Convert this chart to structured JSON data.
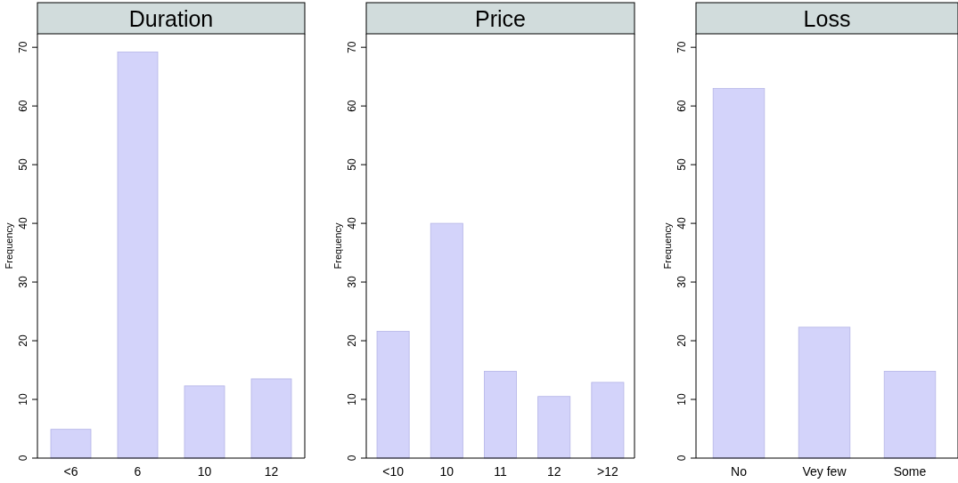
{
  "chart_data": [
    {
      "type": "bar",
      "title": "Duration",
      "ylabel": "Frequency",
      "categories": [
        "<6",
        "6",
        "10",
        "12"
      ],
      "values": [
        4.9,
        69.2,
        12.3,
        13.5
      ],
      "color": "#d3d3fa",
      "ylim": [
        0,
        72.3
      ],
      "yticks": [
        0,
        10,
        20,
        30,
        40,
        50,
        60,
        70
      ],
      "grid": false
    },
    {
      "type": "bar",
      "title": "Price",
      "ylabel": "Frequency",
      "categories": [
        "<10",
        "10",
        "11",
        "12",
        ">12"
      ],
      "values": [
        21.6,
        40.0,
        14.8,
        10.5,
        12.9
      ],
      "color": "#d3d3fa",
      "ylim": [
        0,
        72.3
      ],
      "yticks": [
        0,
        10,
        20,
        30,
        40,
        50,
        60,
        70
      ],
      "grid": false
    },
    {
      "type": "bar",
      "title": "Loss",
      "ylabel": "Frequency",
      "categories": [
        "No",
        "Vey few",
        "Some"
      ],
      "values": [
        63.0,
        22.3,
        14.8
      ],
      "color": "#d3d3fa",
      "ylim": [
        0,
        72.3
      ],
      "yticks": [
        0,
        10,
        20,
        30,
        40,
        50,
        60,
        70
      ],
      "grid": false
    }
  ]
}
